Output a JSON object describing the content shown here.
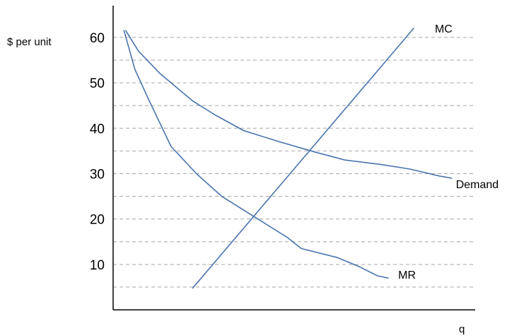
{
  "chart_data": {
    "type": "line",
    "ylabel": "$ per unit",
    "xlabel": "q",
    "ylim": [
      0,
      67
    ],
    "xlim": [
      0,
      10
    ],
    "y_ticks": [
      10,
      20,
      30,
      40,
      50,
      60
    ],
    "gridlines": [
      5,
      10,
      15,
      20,
      25,
      30,
      35,
      40,
      45,
      50,
      55,
      60
    ],
    "grid": "horizontal dashed",
    "colors": {
      "line": "#4a74ad",
      "grid": "#a6a6a6",
      "axis": "#000000"
    },
    "series": [
      {
        "name": "Demand",
        "points": [
          [
            0.35,
            61.5
          ],
          [
            0.7,
            57
          ],
          [
            1.3,
            52
          ],
          [
            2.2,
            46
          ],
          [
            2.8,
            43
          ],
          [
            3.6,
            39.5
          ],
          [
            4.6,
            37
          ],
          [
            5.6,
            34.7
          ],
          [
            6.4,
            33
          ],
          [
            7.4,
            32
          ],
          [
            8.2,
            31
          ],
          [
            9.0,
            29.5
          ],
          [
            9.35,
            29
          ]
        ]
      },
      {
        "name": "MC",
        "points": [
          [
            2.2,
            4.8
          ],
          [
            8.3,
            62
          ]
        ]
      },
      {
        "name": "MR",
        "points": [
          [
            0.3,
            61.5
          ],
          [
            0.6,
            53
          ],
          [
            1.0,
            46
          ],
          [
            1.6,
            36
          ],
          [
            2.3,
            30
          ],
          [
            3.0,
            25
          ],
          [
            3.6,
            22
          ],
          [
            4.8,
            16
          ],
          [
            5.2,
            13.5
          ],
          [
            6.2,
            11.5
          ],
          [
            6.8,
            9.5
          ],
          [
            7.3,
            7.5
          ],
          [
            7.6,
            7
          ]
        ]
      }
    ]
  }
}
